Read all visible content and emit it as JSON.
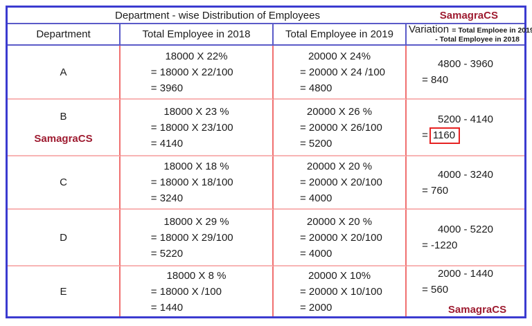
{
  "title": "Department - wise Distribution of Employees",
  "brand_top": "SamagraCS",
  "columns": {
    "department": "Department",
    "y2018": "Total Employee in 2018",
    "y2019": "Total Employee in 2019",
    "variation_label": "Variation",
    "variation_eq": "= Total Emploee in 2019",
    "variation_line2": "- Total Employee in 2018"
  },
  "rows": [
    {
      "dept": "A",
      "calc2018": [
        "18000 X 22%",
        "= 18000 X 22/100",
        "= 3960"
      ],
      "calc2019": [
        "20000 X 24%",
        "= 20000 X 24 /100",
        "= 4800"
      ],
      "variation": [
        "4800 - 3960",
        "= 840"
      ]
    },
    {
      "dept": "B",
      "dept_note": "SamagraCS",
      "calc2018": [
        "18000 X 23 %",
        "= 18000 X 23/100",
        "= 4140"
      ],
      "calc2019": [
        "20000 X 26 %",
        "= 20000 X 26/100",
        "= 5200"
      ],
      "variation": [
        "5200 - 4140",
        "="
      ],
      "variation_boxed": "1160"
    },
    {
      "dept": "C",
      "calc2018": [
        "18000 X 18 %",
        "= 18000 X 18/100",
        "= 3240"
      ],
      "calc2019": [
        "20000 X 20 %",
        "= 20000 X 20/100",
        "= 4000"
      ],
      "variation": [
        "4000 - 3240",
        "= 760"
      ]
    },
    {
      "dept": "D",
      "calc2018": [
        "18000 X 29 %",
        "= 18000 X 29/100",
        "= 5220"
      ],
      "calc2019": [
        "20000 X 20 %",
        "= 20000 X 20/100",
        "= 4000"
      ],
      "variation": [
        "4000 - 5220",
        "= -1220"
      ]
    },
    {
      "dept": "E",
      "calc2018": [
        "18000 X 8 %",
        "= 18000 X /100",
        "= 1440"
      ],
      "calc2019": [
        "20000 X 10%",
        "= 20000 X 10/100",
        "= 2000"
      ],
      "variation": [
        "2000 - 1440",
        "= 560"
      ],
      "variation_note": "SamagraCS"
    }
  ],
  "colors": {
    "outer_border": "#3b3bd0",
    "header_line": "#5a5ac8",
    "column_line": "#f07070",
    "row_line": "#f8b4b4",
    "brand_red": "#9e1b30",
    "highlight_box": "#e62222",
    "text": "#1c1c1c"
  }
}
